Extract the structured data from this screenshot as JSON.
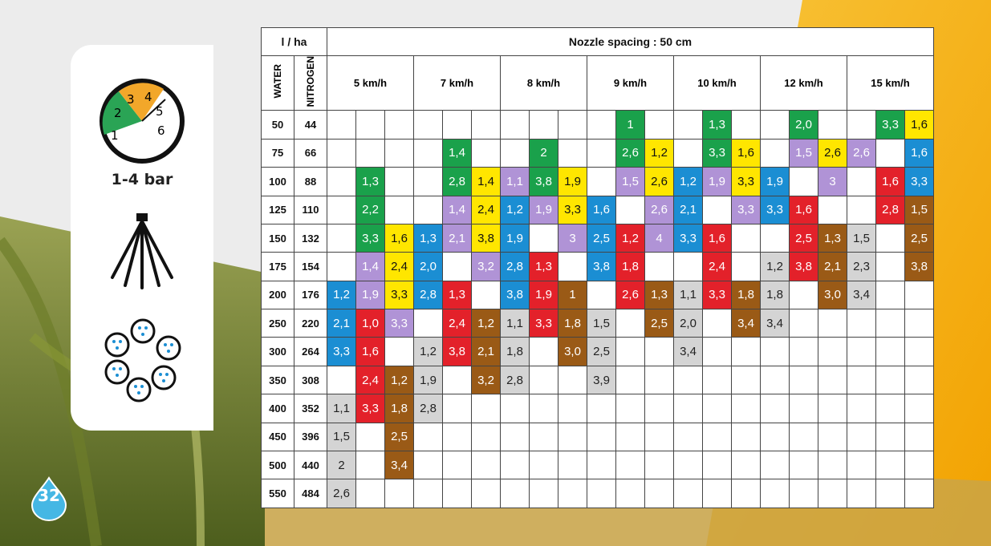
{
  "side": {
    "pressure_label": "1-4 bar",
    "gauge_numbers": [
      "1",
      "2",
      "3",
      "4",
      "5",
      "6"
    ]
  },
  "page_number": "32",
  "table": {
    "rate_unit": "l / ha",
    "spacing_title": "Nozzle spacing : 50 cm",
    "col_water": "WATER",
    "col_nitrogen": "NITROGEN",
    "speeds": [
      "5 km/h",
      "7 km/h",
      "8 km/h",
      "9 km/h",
      "10 km/h",
      "12 km/h",
      "15 km/h"
    ],
    "colors": {
      "green": "#1aa14b",
      "yellow": "#ffe600",
      "lilac": "#b093d6",
      "blue": "#1b8ed3",
      "red": "#e3212a",
      "brown": "#9a5a16",
      "gray": "#d4d4d4"
    },
    "rows": [
      {
        "water": "50",
        "nitrogen": "44",
        "cells": [
          null,
          null,
          null,
          null,
          null,
          null,
          null,
          null,
          null,
          null,
          [
            "1",
            "green"
          ],
          null,
          null,
          [
            "1,3",
            "green"
          ],
          null,
          null,
          [
            "2,0",
            "green"
          ],
          null,
          null,
          [
            "3,3",
            "green"
          ],
          [
            "1,6",
            "yellow"
          ]
        ]
      },
      {
        "water": "75",
        "nitrogen": "66",
        "cells": [
          null,
          null,
          null,
          null,
          [
            "1,4",
            "green"
          ],
          null,
          null,
          [
            "2",
            "green"
          ],
          null,
          null,
          [
            "2,6",
            "green"
          ],
          [
            "1,2",
            "yellow"
          ],
          null,
          [
            "3,3",
            "green"
          ],
          [
            "1,6",
            "yellow"
          ],
          null,
          [
            "1,5",
            "lilac"
          ],
          [
            "2,6",
            "yellow"
          ],
          [
            "2,6",
            "lilac"
          ],
          null,
          [
            "1,6",
            "blue"
          ]
        ]
      },
      {
        "water": "100",
        "nitrogen": "88",
        "cells": [
          null,
          [
            "1,3",
            "green"
          ],
          null,
          null,
          [
            "2,8",
            "green"
          ],
          [
            "1,4",
            "yellow"
          ],
          [
            "1,1",
            "lilac"
          ],
          [
            "3,8",
            "green"
          ],
          [
            "1,9",
            "yellow"
          ],
          null,
          [
            "1,5",
            "lilac"
          ],
          [
            "2,6",
            "yellow"
          ],
          [
            "1,2",
            "blue"
          ],
          [
            "1,9",
            "lilac"
          ],
          [
            "3,3",
            "yellow"
          ],
          [
            "1,9",
            "blue"
          ],
          null,
          [
            "3",
            "lilac"
          ],
          null,
          [
            "1,6",
            "red"
          ],
          [
            "3,3",
            "blue"
          ]
        ]
      },
      {
        "water": "125",
        "nitrogen": "110",
        "cells": [
          null,
          [
            "2,2",
            "green"
          ],
          null,
          null,
          [
            "1,4",
            "lilac"
          ],
          [
            "2,4",
            "yellow"
          ],
          [
            "1,2",
            "blue"
          ],
          [
            "1,9",
            "lilac"
          ],
          [
            "3,3",
            "yellow"
          ],
          [
            "1,6",
            "blue"
          ],
          null,
          [
            "2,6",
            "lilac"
          ],
          [
            "2,1",
            "blue"
          ],
          null,
          [
            "3,3",
            "lilac"
          ],
          [
            "3,3",
            "blue"
          ],
          [
            "1,6",
            "red"
          ],
          null,
          null,
          [
            "2,8",
            "red"
          ],
          [
            "1,5",
            "brown"
          ]
        ]
      },
      {
        "water": "150",
        "nitrogen": "132",
        "cells": [
          null,
          [
            "3,3",
            "green"
          ],
          [
            "1,6",
            "yellow"
          ],
          [
            "1,3",
            "blue"
          ],
          [
            "2,1",
            "lilac"
          ],
          [
            "3,8",
            "yellow"
          ],
          [
            "1,9",
            "blue"
          ],
          null,
          [
            "3",
            "lilac"
          ],
          [
            "2,5",
            "blue"
          ],
          [
            "1,2",
            "red"
          ],
          [
            "4",
            "lilac"
          ],
          [
            "3,3",
            "blue"
          ],
          [
            "1,6",
            "red"
          ],
          null,
          null,
          [
            "2,5",
            "red"
          ],
          [
            "1,3",
            "brown"
          ],
          [
            "1,5",
            "gray"
          ],
          null,
          [
            "2,5",
            "brown"
          ]
        ]
      },
      {
        "water": "175",
        "nitrogen": "154",
        "cells": [
          null,
          [
            "1,4",
            "lilac"
          ],
          [
            "2,4",
            "yellow"
          ],
          [
            "2,0",
            "blue"
          ],
          null,
          [
            "3,2",
            "lilac"
          ],
          [
            "2,8",
            "blue"
          ],
          [
            "1,3",
            "red"
          ],
          null,
          [
            "3,8",
            "blue"
          ],
          [
            "1,8",
            "red"
          ],
          null,
          null,
          [
            "2,4",
            "red"
          ],
          null,
          [
            "1,2",
            "gray"
          ],
          [
            "3,8",
            "red"
          ],
          [
            "2,1",
            "brown"
          ],
          [
            "2,3",
            "gray"
          ],
          null,
          [
            "3,8",
            "brown"
          ]
        ]
      },
      {
        "water": "200",
        "nitrogen": "176",
        "cells": [
          [
            "1,2",
            "blue"
          ],
          [
            "1,9",
            "lilac"
          ],
          [
            "3,3",
            "yellow"
          ],
          [
            "2,8",
            "blue"
          ],
          [
            "1,3",
            "red"
          ],
          null,
          [
            "3,8",
            "blue"
          ],
          [
            "1,9",
            "red"
          ],
          [
            "1",
            "brown"
          ],
          null,
          [
            "2,6",
            "red"
          ],
          [
            "1,3",
            "brown"
          ],
          [
            "1,1",
            "gray"
          ],
          [
            "3,3",
            "red"
          ],
          [
            "1,8",
            "brown"
          ],
          [
            "1,8",
            "gray"
          ],
          null,
          [
            "3,0",
            "brown"
          ],
          [
            "3,4",
            "gray"
          ],
          null,
          null
        ]
      },
      {
        "water": "250",
        "nitrogen": "220",
        "cells": [
          [
            "2,1",
            "blue"
          ],
          [
            "1,0",
            "red"
          ],
          [
            "3,3",
            "lilac"
          ],
          null,
          [
            "2,4",
            "red"
          ],
          [
            "1,2",
            "brown"
          ],
          [
            "1,1",
            "gray"
          ],
          [
            "3,3",
            "red"
          ],
          [
            "1,8",
            "brown"
          ],
          [
            "1,5",
            "gray"
          ],
          null,
          [
            "2,5",
            "brown"
          ],
          [
            "2,0",
            "gray"
          ],
          null,
          [
            "3,4",
            "brown"
          ],
          [
            "3,4",
            "gray"
          ],
          null,
          null,
          null,
          null,
          null
        ]
      },
      {
        "water": "300",
        "nitrogen": "264",
        "cells": [
          [
            "3,3",
            "blue"
          ],
          [
            "1,6",
            "red"
          ],
          null,
          [
            "1,2",
            "gray"
          ],
          [
            "3,8",
            "red"
          ],
          [
            "2,1",
            "brown"
          ],
          [
            "1,8",
            "gray"
          ],
          null,
          [
            "3,0",
            "brown"
          ],
          [
            "2,5",
            "gray"
          ],
          null,
          null,
          [
            "3,4",
            "gray"
          ],
          null,
          null,
          null,
          null,
          null,
          null,
          null,
          null
        ]
      },
      {
        "water": "350",
        "nitrogen": "308",
        "cells": [
          null,
          [
            "2,4",
            "red"
          ],
          [
            "1,2",
            "brown"
          ],
          [
            "1,9",
            "gray"
          ],
          null,
          [
            "3,2",
            "brown"
          ],
          [
            "2,8",
            "gray"
          ],
          null,
          null,
          [
            "3,9",
            "gray"
          ],
          null,
          null,
          null,
          null,
          null,
          null,
          null,
          null,
          null,
          null,
          null
        ]
      },
      {
        "water": "400",
        "nitrogen": "352",
        "cells": [
          [
            "1,1",
            "gray"
          ],
          [
            "3,3",
            "red"
          ],
          [
            "1,8",
            "brown"
          ],
          [
            "2,8",
            "gray"
          ],
          null,
          null,
          null,
          null,
          null,
          null,
          null,
          null,
          null,
          null,
          null,
          null,
          null,
          null,
          null,
          null,
          null
        ]
      },
      {
        "water": "450",
        "nitrogen": "396",
        "cells": [
          [
            "1,5",
            "gray"
          ],
          null,
          [
            "2,5",
            "brown"
          ],
          null,
          null,
          null,
          null,
          null,
          null,
          null,
          null,
          null,
          null,
          null,
          null,
          null,
          null,
          null,
          null,
          null,
          null
        ]
      },
      {
        "water": "500",
        "nitrogen": "440",
        "cells": [
          [
            "2",
            "gray"
          ],
          null,
          [
            "3,4",
            "brown"
          ],
          null,
          null,
          null,
          null,
          null,
          null,
          null,
          null,
          null,
          null,
          null,
          null,
          null,
          null,
          null,
          null,
          null,
          null
        ]
      },
      {
        "water": "550",
        "nitrogen": "484",
        "cells": [
          [
            "2,6",
            "gray"
          ],
          null,
          null,
          null,
          null,
          null,
          null,
          null,
          null,
          null,
          null,
          null,
          null,
          null,
          null,
          null,
          null,
          null,
          null,
          null,
          null
        ]
      }
    ]
  }
}
